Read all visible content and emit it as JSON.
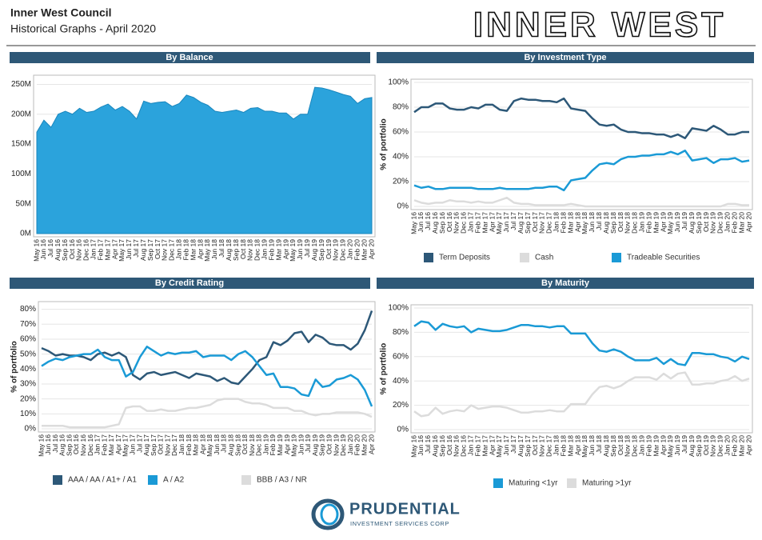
{
  "header": {
    "title": "Inner West Council",
    "subtitle": "Historical Graphs - April 2020",
    "logo": "INNER WEST"
  },
  "footer": {
    "brand": "PRUDENTIAL",
    "tagline": "INVESTMENT SERVICES CORP"
  },
  "chart_data": [
    {
      "type": "area",
      "title": "By Balance",
      "color": "#2ba3dc",
      "categories": [
        "May 16",
        "Jun 16",
        "Jul 16",
        "Aug 16",
        "Sep 16",
        "Oct 16",
        "Nov 16",
        "Dec 16",
        "Jan 17",
        "Feb 17",
        "Mar 17",
        "Apr 17",
        "May 17",
        "Jun 17",
        "Jul 17",
        "Aug 17",
        "Sep 17",
        "Oct 17",
        "Nov 17",
        "Dec 17",
        "Jan 18",
        "Feb 18",
        "Mar 18",
        "Apr 18",
        "May 18",
        "Jun 18",
        "Jul 18",
        "Aug 18",
        "Sep 18",
        "Oct 18",
        "Nov 18",
        "Dec 18",
        "Jan 19",
        "Feb 19",
        "Mar 19",
        "Apr 19",
        "May 19",
        "Jun 19",
        "Jul 19",
        "Aug 19",
        "Sep 19",
        "Oct 19",
        "Nov 19",
        "Dec 19",
        "Jan 20",
        "Feb 20",
        "Mar 20",
        "Apr 20"
      ],
      "values": [
        170,
        190,
        178,
        200,
        205,
        200,
        210,
        203,
        205,
        212,
        217,
        207,
        213,
        205,
        192,
        222,
        218,
        220,
        221,
        213,
        218,
        232,
        228,
        220,
        215,
        205,
        203,
        205,
        207,
        203,
        210,
        211,
        205,
        205,
        202,
        202,
        192,
        200,
        200,
        245,
        244,
        241,
        237,
        233,
        230,
        218,
        226,
        228
      ],
      "ylim": [
        0,
        260
      ],
      "yticks": [
        {
          "value": 0,
          "label": "0M"
        },
        {
          "value": 50,
          "label": "50M"
        },
        {
          "value": 100,
          "label": "100M"
        },
        {
          "value": 150,
          "label": "150M"
        },
        {
          "value": 200,
          "label": "200M"
        },
        {
          "value": 250,
          "label": "250M"
        }
      ],
      "grid": true
    },
    {
      "type": "line",
      "title": "By Investment Type",
      "y_label": "% of portfolio",
      "categories": [
        "May 16",
        "Jun 16",
        "Jul 16",
        "Aug 16",
        "Sep 16",
        "Oct 16",
        "Nov 16",
        "Dec 16",
        "Jan 17",
        "Feb 17",
        "Mar 17",
        "Apr 17",
        "May 17",
        "Jun 17",
        "Jul 17",
        "Aug 17",
        "Sep 17",
        "Oct 17",
        "Nov 17",
        "Dec 17",
        "Jan 18",
        "Feb 18",
        "Mar 18",
        "Apr 18",
        "May 18",
        "Jun 18",
        "Jul 18",
        "Aug 18",
        "Sep 18",
        "Oct 18",
        "Nov 18",
        "Dec 18",
        "Jan 19",
        "Feb 19",
        "Mar 19",
        "Apr 19",
        "May 19",
        "Jun 19",
        "Jul 19",
        "Aug 19",
        "Sep 19",
        "Oct 19",
        "Nov 19",
        "Dec 19",
        "Jan 20",
        "Feb 20",
        "Mar 20",
        "Apr 20"
      ],
      "series": [
        {
          "name": "Term Deposits",
          "color": "#2d5878",
          "values": [
            76,
            80,
            80,
            83,
            83,
            79,
            78,
            78,
            80,
            79,
            82,
            82,
            78,
            77,
            85,
            87,
            86,
            86,
            85,
            85,
            84,
            87,
            79,
            78,
            77,
            71,
            66,
            65,
            66,
            62,
            60,
            60,
            59,
            59,
            58,
            58,
            56,
            58,
            55,
            63,
            62,
            61,
            65,
            62,
            58,
            58,
            60,
            60
          ]
        },
        {
          "name": "Cash",
          "color": "#dcdcdc",
          "values": [
            5,
            3,
            2,
            3,
            3,
            5,
            4,
            4,
            3,
            4,
            3,
            3,
            5,
            7,
            3,
            2,
            2,
            1,
            1,
            1,
            1,
            1,
            2,
            1,
            0,
            0,
            0,
            0,
            0,
            0,
            0,
            0,
            0,
            0,
            0,
            0,
            0,
            0,
            0,
            0,
            0,
            0,
            0,
            0,
            2,
            2,
            1,
            1
          ]
        },
        {
          "name": "Tradeable Securities",
          "color": "#1a9ad6",
          "values": [
            17,
            15,
            16,
            14,
            14,
            15,
            15,
            15,
            15,
            14,
            14,
            14,
            15,
            14,
            14,
            14,
            14,
            15,
            15,
            16,
            16,
            13,
            21,
            22,
            23,
            29,
            34,
            35,
            34,
            38,
            40,
            40,
            41,
            41,
            42,
            42,
            44,
            42,
            45,
            37,
            38,
            39,
            35,
            38,
            38,
            39,
            36,
            37
          ]
        }
      ],
      "ylim": [
        0,
        100
      ],
      "yticks": [
        {
          "value": 0,
          "label": "0%"
        },
        {
          "value": 20,
          "label": "20%"
        },
        {
          "value": 40,
          "label": "40%"
        },
        {
          "value": 60,
          "label": "60%"
        },
        {
          "value": 80,
          "label": "80%"
        },
        {
          "value": 100,
          "label": "100%"
        }
      ],
      "grid": true,
      "legend": "bottom"
    },
    {
      "type": "line",
      "title": "By Credit Rating",
      "y_label": "% of portfolio",
      "categories": [
        "May 16",
        "Jun 16",
        "Jul 16",
        "Aug 16",
        "Sep 16",
        "Oct 16",
        "Nov 16",
        "Dec 16",
        "Jan 17",
        "Feb 17",
        "Mar 17",
        "Apr 17",
        "May 17",
        "Jun 17",
        "Jul 17",
        "Aug 17",
        "Sep 17",
        "Oct 17",
        "Nov 17",
        "Dec 17",
        "Jan 18",
        "Feb 18",
        "Mar 18",
        "Apr 18",
        "May 18",
        "Jun 18",
        "Jul 18",
        "Aug 18",
        "Sep 18",
        "Oct 18",
        "Nov 18",
        "Dec 18",
        "Jan 19",
        "Feb 19",
        "Mar 19",
        "Apr 19",
        "May 19",
        "Jun 19",
        "Jul 19",
        "Aug 19",
        "Sep 19",
        "Oct 19",
        "Nov 19",
        "Dec 19",
        "Jan 20",
        "Feb 20",
        "Mar 20",
        "Apr 20"
      ],
      "series": [
        {
          "name": "AAA / AA / A1+ / A1",
          "color": "#2d5878",
          "values": [
            54,
            52,
            49,
            50,
            49,
            49,
            48,
            46,
            50,
            51,
            49,
            51,
            48,
            36,
            33,
            37,
            38,
            36,
            37,
            38,
            36,
            34,
            37,
            36,
            35,
            32,
            34,
            31,
            30,
            35,
            40,
            46,
            48,
            58,
            56,
            59,
            64,
            65,
            58,
            63,
            61,
            57,
            56,
            56,
            53,
            57,
            66,
            79
          ]
        },
        {
          "name": "A / A2",
          "color": "#1a9ad6",
          "values": [
            42,
            45,
            47,
            46,
            48,
            49,
            50,
            50,
            53,
            48,
            46,
            46,
            35,
            38,
            48,
            55,
            52,
            49,
            51,
            50,
            51,
            51,
            52,
            48,
            49,
            49,
            49,
            46,
            50,
            52,
            48,
            42,
            36,
            37,
            28,
            28,
            27,
            23,
            22,
            33,
            28,
            29,
            33,
            34,
            36,
            33,
            26,
            15
          ]
        },
        {
          "name": "BBB / A3 / NR",
          "color": "#dcdcdc",
          "values": [
            2,
            2,
            2,
            2,
            1,
            1,
            1,
            1,
            1,
            1,
            2,
            3,
            14,
            15,
            15,
            12,
            12,
            13,
            12,
            12,
            13,
            14,
            14,
            15,
            16,
            19,
            20,
            20,
            20,
            18,
            17,
            17,
            16,
            14,
            14,
            14,
            12,
            12,
            10,
            9,
            10,
            10,
            11,
            11,
            11,
            11,
            10,
            8
          ]
        }
      ],
      "ylim": [
        0,
        83
      ],
      "yticks": [
        {
          "value": 0,
          "label": "0%"
        },
        {
          "value": 10,
          "label": "10%"
        },
        {
          "value": 20,
          "label": "20%"
        },
        {
          "value": 30,
          "label": "30%"
        },
        {
          "value": 40,
          "label": "40%"
        },
        {
          "value": 50,
          "label": "50%"
        },
        {
          "value": 60,
          "label": "60%"
        },
        {
          "value": 70,
          "label": "70%"
        },
        {
          "value": 80,
          "label": "80%"
        }
      ],
      "grid": true,
      "legend": "bottom"
    },
    {
      "type": "line",
      "title": "By Maturity",
      "y_label": "% of portfolio",
      "categories": [
        "May 16",
        "Jun 16",
        "Jul 16",
        "Aug 16",
        "Sep 16",
        "Oct 16",
        "Nov 16",
        "Dec 16",
        "Jan 17",
        "Feb 17",
        "Mar 17",
        "Apr 17",
        "May 17",
        "Jun 17",
        "Jul 17",
        "Aug 17",
        "Sep 17",
        "Oct 17",
        "Nov 17",
        "Dec 17",
        "Jan 18",
        "Feb 18",
        "Mar 18",
        "Apr 18",
        "May 18",
        "Jun 18",
        "Jul 18",
        "Aug 18",
        "Sep 18",
        "Oct 18",
        "Nov 18",
        "Dec 18",
        "Jan 19",
        "Feb 19",
        "Mar 19",
        "Apr 19",
        "May 19",
        "Jun 19",
        "Jul 19",
        "Aug 19",
        "Sep 19",
        "Oct 19",
        "Nov 19",
        "Dec 19",
        "Jan 20",
        "Feb 20",
        "Mar 20",
        "Apr 20"
      ],
      "series": [
        {
          "name": "Maturing <1yr",
          "color": "#1a9ad6",
          "values": [
            85,
            89,
            88,
            82,
            87,
            85,
            84,
            85,
            80,
            83,
            82,
            81,
            81,
            82,
            84,
            86,
            86,
            85,
            85,
            84,
            85,
            85,
            79,
            79,
            79,
            71,
            65,
            64,
            66,
            64,
            60,
            57,
            57,
            57,
            59,
            54,
            58,
            54,
            53,
            63,
            63,
            62,
            62,
            60,
            59,
            56,
            60,
            58
          ]
        },
        {
          "name": "Maturing >1yr",
          "color": "#dcdcdc",
          "values": [
            15,
            11,
            12,
            18,
            13,
            15,
            16,
            15,
            20,
            17,
            18,
            19,
            19,
            18,
            16,
            14,
            14,
            15,
            15,
            16,
            15,
            15,
            21,
            21,
            21,
            29,
            35,
            36,
            34,
            36,
            40,
            43,
            43,
            43,
            41,
            46,
            42,
            46,
            47,
            37,
            37,
            38,
            38,
            40,
            41,
            44,
            40,
            42
          ]
        }
      ],
      "ylim": [
        0,
        100
      ],
      "yticks": [
        {
          "value": 0,
          "label": "0%"
        },
        {
          "value": 20,
          "label": "20%"
        },
        {
          "value": 40,
          "label": "40%"
        },
        {
          "value": 60,
          "label": "60%"
        },
        {
          "value": 80,
          "label": "80%"
        },
        {
          "value": 100,
          "label": "100%"
        }
      ],
      "grid": true,
      "legend": "bottom"
    }
  ]
}
